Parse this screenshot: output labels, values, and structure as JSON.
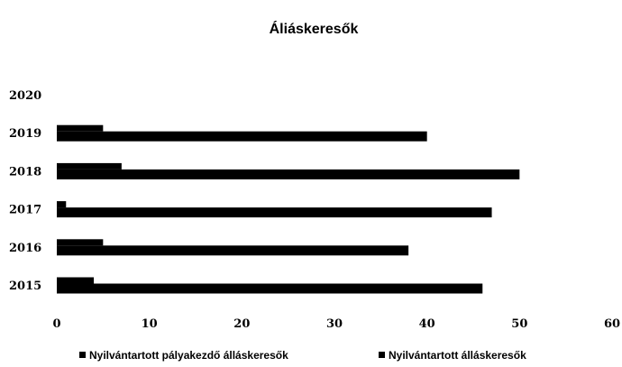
{
  "chart_data": {
    "type": "bar",
    "orientation": "horizontal",
    "title": "Áliáskeresők",
    "categories": [
      "2015",
      "2016",
      "2017",
      "2018",
      "2019",
      "2020"
    ],
    "series": [
      {
        "name": "Nyilvántartott pályakezdő álláskeresők",
        "values": [
          4,
          5,
          1,
          7,
          5,
          0
        ],
        "color": "#000000"
      },
      {
        "name": "Nyilvántartott álláskeresők",
        "values": [
          46,
          38,
          47,
          50,
          40,
          0
        ],
        "color": "#000000"
      }
    ],
    "xlim": [
      0,
      60
    ],
    "xticks": [
      0,
      10,
      20,
      30,
      40,
      50,
      60
    ],
    "grid": false,
    "legend": "bottom"
  }
}
